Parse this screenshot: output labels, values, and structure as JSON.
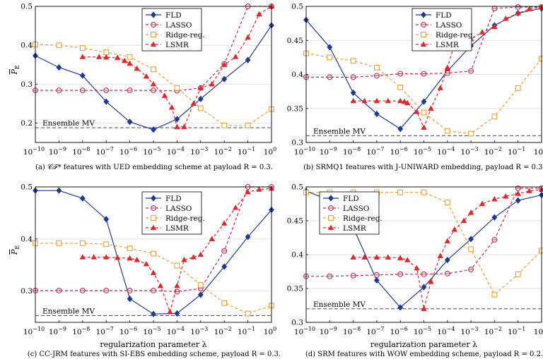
{
  "figure": {
    "ylabel_symbol": "P",
    "ylabel_sub": "E",
    "xlabel": "regularization parameter λ",
    "x_ticks": [
      {
        "base": "10",
        "exp": "−10",
        "v": -10
      },
      {
        "base": "10",
        "exp": "−9",
        "v": -9
      },
      {
        "base": "10",
        "exp": "−8",
        "v": -8
      },
      {
        "base": "10",
        "exp": "−7",
        "v": -7
      },
      {
        "base": "10",
        "exp": "−6",
        "v": -6
      },
      {
        "base": "10",
        "exp": "−5",
        "v": -5
      },
      {
        "base": "10",
        "exp": "−4",
        "v": -4
      },
      {
        "base": "10",
        "exp": "−3",
        "v": -3
      },
      {
        "base": "10",
        "exp": "−2",
        "v": -2
      },
      {
        "base": "10",
        "exp": "−1",
        "v": -1
      },
      {
        "base": "10",
        "exp": "0",
        "v": 0
      }
    ],
    "colors": {
      "FLD": "#1f3a93",
      "LASSO": "#c8284f",
      "Ridge-reg.": "#f0a030",
      "LSMR": "#e8242a",
      "mv": "#333333"
    }
  },
  "chart_data": [
    {
      "type": "line",
      "caption": "(a) 𝒞ℱ* features with UED embedding scheme at payload R = 0.3.",
      "x_scale": "log",
      "xlim": [
        1e-10,
        1
      ],
      "ylim": [
        0.15,
        0.5
      ],
      "yticks": [
        0.2,
        0.3,
        0.4,
        0.5
      ],
      "ytick_labels": [
        "0.2",
        "0.3",
        "0.4",
        "0.5"
      ],
      "grid": true,
      "legend_position": "top-center",
      "ensemble_mv": {
        "label": "Ensemble MV",
        "value": 0.188
      },
      "series": [
        {
          "name": "FLD",
          "x": [
            1e-10,
            1e-09,
            1e-08,
            1e-07,
            1e-06,
            1e-05,
            0.0001,
            0.001,
            0.01,
            0.1,
            1
          ],
          "y": [
            0.373,
            0.343,
            0.322,
            0.255,
            0.203,
            0.183,
            0.21,
            0.262,
            0.313,
            0.362,
            0.451
          ]
        },
        {
          "name": "LASSO",
          "x": [
            1e-10,
            1e-09,
            1e-08,
            1e-07,
            1e-06,
            1e-05,
            0.0001,
            0.001,
            0.01,
            0.1,
            1
          ],
          "y": [
            0.284,
            0.284,
            0.284,
            0.284,
            0.284,
            0.284,
            0.283,
            0.29,
            0.352,
            0.5,
            0.5
          ]
        },
        {
          "name": "Ridge-reg.",
          "x": [
            1e-10,
            1e-09,
            1e-08,
            1e-07,
            1e-06,
            1e-05,
            0.0001,
            0.001,
            0.01,
            0.1,
            1
          ],
          "y": [
            0.402,
            0.4,
            0.393,
            0.382,
            0.37,
            0.338,
            0.29,
            0.238,
            0.194,
            0.194,
            0.236
          ]
        },
        {
          "name": "LSMR",
          "x": [
            1e-08,
            5e-08,
            1e-07,
            3e-07,
            6e-07,
            1e-06,
            2e-06,
            5e-06,
            1e-05,
            3e-05,
            6e-05,
            0.0001,
            0.0002,
            0.0005,
            0.001,
            0.003,
            0.01,
            0.03,
            0.1,
            0.3,
            1
          ],
          "y": [
            0.37,
            0.37,
            0.369,
            0.368,
            0.36,
            0.353,
            0.34,
            0.32,
            0.3,
            0.27,
            0.24,
            0.19,
            0.19,
            0.25,
            0.29,
            0.3,
            0.35,
            0.37,
            0.42,
            0.48,
            0.5
          ]
        }
      ]
    },
    {
      "type": "line",
      "caption": "(b) SRMQ1 features with J-UNIWARD embedding, payload R = 0.3.",
      "x_scale": "log",
      "xlim": [
        1e-10,
        1
      ],
      "ylim": [
        0.3,
        0.5
      ],
      "yticks": [
        0.3,
        0.35,
        0.4,
        0.45,
        0.5
      ],
      "ytick_labels": [
        "0.3",
        "0.35",
        "0.4",
        "0.45",
        "0.5"
      ],
      "grid": true,
      "legend_position": "top-center",
      "ensemble_mv": {
        "label": "Ensemble MV",
        "value": 0.31
      },
      "series": [
        {
          "name": "FLD",
          "x": [
            1e-10,
            1e-09,
            1e-08,
            1e-07,
            1e-06,
            1e-05,
            0.0001,
            0.001,
            0.01,
            0.1,
            1
          ],
          "y": [
            0.48,
            0.44,
            0.373,
            0.342,
            0.32,
            0.36,
            0.405,
            0.442,
            0.472,
            0.49,
            0.497
          ]
        },
        {
          "name": "LASSO",
          "x": [
            1e-10,
            1e-09,
            1e-08,
            1e-07,
            1e-06,
            1e-05,
            0.0001,
            0.001,
            0.01,
            0.1,
            1
          ],
          "y": [
            0.396,
            0.396,
            0.396,
            0.398,
            0.401,
            0.401,
            0.402,
            0.405,
            0.497,
            0.499,
            0.499
          ]
        },
        {
          "name": "Ridge-reg.",
          "x": [
            1e-10,
            1e-09,
            1e-08,
            1e-07,
            1e-06,
            1e-05,
            0.0001,
            0.001,
            0.01,
            0.1,
            1
          ],
          "y": [
            0.431,
            0.425,
            0.42,
            0.41,
            0.381,
            0.344,
            0.317,
            0.313,
            0.338,
            0.38,
            0.423
          ]
        },
        {
          "name": "LSMR",
          "x": [
            1e-08,
            3e-08,
            1e-07,
            3e-07,
            1e-06,
            1.5e-06,
            2e-06,
            5e-06,
            1e-05,
            2e-05,
            5e-05,
            0.0001,
            0.0002,
            0.0005,
            0.001,
            0.003,
            0.01,
            0.03,
            0.1,
            0.3,
            1
          ],
          "y": [
            0.361,
            0.361,
            0.361,
            0.361,
            0.361,
            0.36,
            0.358,
            0.345,
            0.322,
            0.35,
            0.38,
            0.41,
            0.444,
            0.448,
            0.452,
            0.462,
            0.47,
            0.482,
            0.49,
            0.496,
            0.499
          ]
        }
      ]
    },
    {
      "type": "line",
      "caption": "(c) CC-JRM features with SI-EBS embedding scheme, payload R = 0.3.",
      "x_scale": "log",
      "xlim": [
        1e-10,
        1
      ],
      "ylim": [
        0.24,
        0.5
      ],
      "yticks": [
        0.3,
        0.4,
        0.5
      ],
      "ytick_labels": [
        "0.3",
        "0.4",
        "0.5"
      ],
      "grid": true,
      "legend_position": "top-center",
      "ensemble_mv": {
        "label": "Ensemble MV",
        "value": 0.253
      },
      "series": [
        {
          "name": "FLD",
          "x": [
            1e-10,
            1e-09,
            1e-08,
            1e-07,
            1e-06,
            1e-05,
            0.0001,
            0.001,
            0.01,
            0.1,
            1
          ],
          "y": [
            0.493,
            0.493,
            0.478,
            0.438,
            0.285,
            0.256,
            0.257,
            0.293,
            0.347,
            0.404,
            0.456
          ]
        },
        {
          "name": "LASSO",
          "x": [
            1e-10,
            1e-09,
            1e-08,
            1e-07,
            1e-06,
            1e-05,
            0.0001,
            0.001,
            0.01,
            0.1,
            1
          ],
          "y": [
            0.301,
            0.301,
            0.301,
            0.301,
            0.301,
            0.301,
            0.299,
            0.305,
            0.377,
            0.5,
            0.5
          ]
        },
        {
          "name": "Ridge-reg.",
          "x": [
            1e-10,
            1e-09,
            1e-08,
            1e-07,
            1e-06,
            1e-05,
            0.0001,
            0.001,
            0.01,
            0.1,
            1
          ],
          "y": [
            0.392,
            0.392,
            0.392,
            0.39,
            0.382,
            0.372,
            0.349,
            0.312,
            0.277,
            0.257,
            0.272
          ]
        },
        {
          "name": "LSMR",
          "x": [
            1e-08,
            3e-08,
            1e-07,
            3e-07,
            1e-06,
            2e-06,
            5e-06,
            1e-05,
            2e-05,
            5e-05,
            0.0001,
            0.0002,
            0.0005,
            0.001,
            0.003,
            0.01,
            0.03,
            0.1,
            0.3,
            1
          ],
          "y": [
            0.365,
            0.365,
            0.365,
            0.364,
            0.363,
            0.36,
            0.352,
            0.335,
            0.31,
            0.26,
            0.31,
            0.36,
            0.365,
            0.37,
            0.4,
            0.43,
            0.46,
            0.49,
            0.495,
            0.497
          ]
        }
      ]
    },
    {
      "type": "line",
      "caption": "(d) SRM features with WOW embedding scheme, payload R = 0.2.",
      "x_scale": "log",
      "xlim": [
        1e-10,
        1
      ],
      "ylim": [
        0.3,
        0.5
      ],
      "yticks": [
        0.3,
        0.35,
        0.4,
        0.45,
        0.5
      ],
      "ytick_labels": [
        "0.3",
        "0.35",
        "0.4",
        "0.45",
        "0.5"
      ],
      "grid": true,
      "legend_position": "top-left",
      "ensemble_mv": {
        "label": "Ensemble MV",
        "value": 0.32
      },
      "series": [
        {
          "name": "FLD",
          "x": [
            1e-10,
            1e-09,
            1e-08,
            1e-07,
            1e-06,
            1e-05,
            0.0001,
            0.001,
            0.01,
            0.1,
            1
          ],
          "y": [
            0.494,
            0.48,
            0.44,
            0.362,
            0.322,
            0.352,
            0.392,
            0.423,
            0.455,
            0.48,
            0.488
          ]
        },
        {
          "name": "LASSO",
          "x": [
            1e-10,
            1e-09,
            1e-08,
            1e-07,
            1e-06,
            1e-05,
            0.0001,
            0.001,
            0.01,
            0.1,
            1
          ],
          "y": [
            0.368,
            0.368,
            0.369,
            0.37,
            0.371,
            0.371,
            0.372,
            0.378,
            0.422,
            0.498,
            0.498
          ]
        },
        {
          "name": "Ridge-reg.",
          "x": [
            1e-10,
            1e-09,
            1e-08,
            1e-07,
            1e-06,
            1e-05,
            0.0001,
            0.001,
            0.01,
            0.1,
            1
          ],
          "y": [
            0.492,
            0.492,
            0.492,
            0.492,
            0.492,
            0.492,
            0.477,
            0.408,
            0.341,
            0.371,
            0.406
          ]
        },
        {
          "name": "LSMR",
          "x": [
            1e-08,
            3e-08,
            1e-07,
            3e-07,
            1e-06,
            2e-06,
            5e-06,
            1e-05,
            2e-05,
            5e-05,
            0.0001,
            0.0002,
            0.0005,
            0.001,
            0.003,
            0.01,
            0.03,
            0.1,
            0.3,
            1
          ],
          "y": [
            0.396,
            0.396,
            0.396,
            0.396,
            0.395,
            0.392,
            0.38,
            0.32,
            0.36,
            0.398,
            0.42,
            0.437,
            0.45,
            0.462,
            0.475,
            0.482,
            0.486,
            0.49,
            0.494,
            0.496
          ]
        }
      ]
    }
  ]
}
